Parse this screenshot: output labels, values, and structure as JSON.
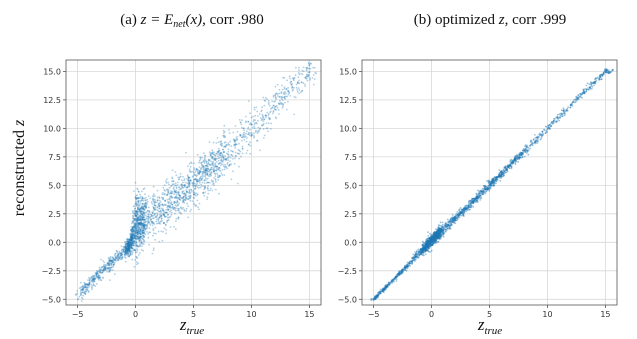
{
  "figure": {
    "ylabel": "reconstructed",
    "ylabel_var": "z"
  },
  "colors": {
    "points": "#1f77b4"
  },
  "chart_data": [
    {
      "type": "scatter",
      "title_prefix": "(a) ",
      "title_math": "z = E",
      "title_sub": "net",
      "title_math2": "(x)",
      "title_suffix": ", corr .980",
      "xlabel": "z",
      "xlabel_sub": "true",
      "xlim": [
        -6,
        16
      ],
      "ylim": [
        -5.5,
        16
      ],
      "xticks": [
        -5,
        0,
        5,
        10,
        15
      ],
      "yticks": [
        -5.0,
        -2.5,
        0.0,
        2.5,
        5.0,
        7.5,
        10.0,
        12.5,
        15.0
      ],
      "grid": true,
      "correlation": 0.98,
      "point_count_note": "dense cloud around the identity line, widening for z_true > 0; tight cluster near origin",
      "series_profile": [
        {
          "x": -5.0,
          "y_center": -4.6,
          "spread": 0.5
        },
        {
          "x": -2.5,
          "y_center": -2.2,
          "spread": 0.6
        },
        {
          "x": -0.5,
          "y_center": -0.3,
          "spread": 0.6
        },
        {
          "x": 0.0,
          "y_center": 1.5,
          "spread": 2.0
        },
        {
          "x": 2.5,
          "y_center": 3.0,
          "spread": 1.8
        },
        {
          "x": 5.0,
          "y_center": 5.0,
          "spread": 1.8
        },
        {
          "x": 7.5,
          "y_center": 7.5,
          "spread": 1.7
        },
        {
          "x": 10.0,
          "y_center": 10.0,
          "spread": 1.6
        },
        {
          "x": 12.5,
          "y_center": 12.5,
          "spread": 1.4
        },
        {
          "x": 15.0,
          "y_center": 15.0,
          "spread": 1.2
        }
      ]
    },
    {
      "type": "scatter",
      "title_prefix": "(b) optimized ",
      "title_math": "z",
      "title_sub": "",
      "title_math2": "",
      "title_suffix": ", corr .999",
      "xlabel": "z",
      "xlabel_sub": "true",
      "xlim": [
        -6,
        16
      ],
      "ylim": [
        -5.5,
        16
      ],
      "xticks": [
        -5,
        0,
        5,
        10,
        15
      ],
      "yticks": [
        -5.0,
        -2.5,
        0.0,
        2.5,
        5.0,
        7.5,
        10.0,
        12.5,
        15.0
      ],
      "grid": true,
      "correlation": 0.999,
      "point_count_note": "narrow band along the identity line with a small blob near the origin",
      "series_profile": [
        {
          "x": -5.0,
          "y_center": -5.0,
          "spread": 0.15
        },
        {
          "x": -2.5,
          "y_center": -2.5,
          "spread": 0.2
        },
        {
          "x": 0.0,
          "y_center": 0.2,
          "spread": 0.5
        },
        {
          "x": 2.5,
          "y_center": 2.5,
          "spread": 0.35
        },
        {
          "x": 5.0,
          "y_center": 5.0,
          "spread": 0.35
        },
        {
          "x": 7.5,
          "y_center": 7.5,
          "spread": 0.35
        },
        {
          "x": 10.0,
          "y_center": 10.0,
          "spread": 0.3
        },
        {
          "x": 12.5,
          "y_center": 12.5,
          "spread": 0.3
        },
        {
          "x": 15.0,
          "y_center": 15.0,
          "spread": 0.25
        }
      ]
    }
  ]
}
